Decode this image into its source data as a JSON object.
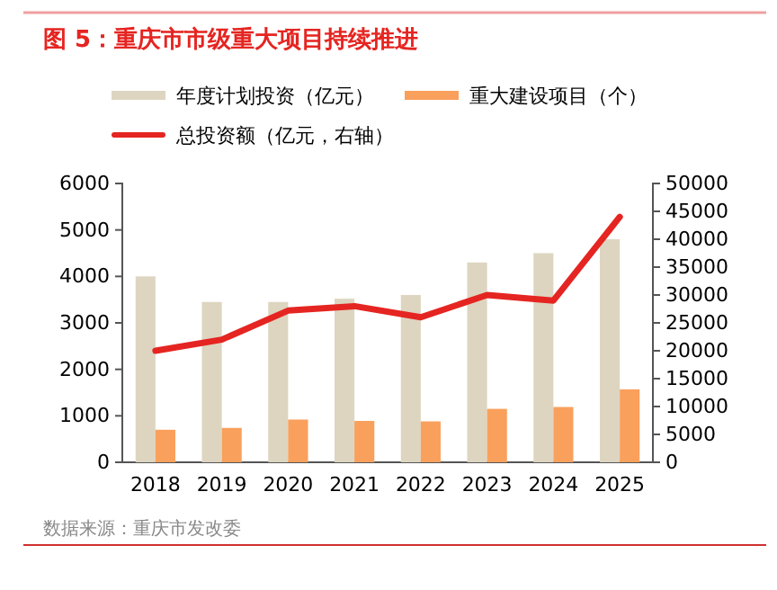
{
  "chart_data": {
    "type": "bar",
    "title": "图 5：重庆市市级重大项目持续推进",
    "categories": [
      "2018",
      "2019",
      "2020",
      "2021",
      "2022",
      "2023",
      "2024",
      "2025"
    ],
    "series": [
      {
        "name": "年度计划投资（亿元）",
        "color": "#ddd5c0",
        "values": [
          4000,
          3450,
          3450,
          3520,
          3600,
          4300,
          4500,
          4800
        ]
      },
      {
        "name": "重大建设项目（个）",
        "color": "#f9a05c",
        "values": [
          700,
          740,
          920,
          890,
          880,
          1150,
          1190,
          1570
        ]
      },
      {
        "name": "总投资额（亿元，右轴）",
        "type": "line",
        "axis": "y2",
        "color": "#e52521",
        "values": [
          20000,
          22000,
          27200,
          28000,
          26000,
          30000,
          29000,
          44000
        ]
      }
    ],
    "ylim": [
      0,
      6000
    ],
    "yticks": [
      0,
      1000,
      2000,
      3000,
      4000,
      5000,
      6000
    ],
    "y2lim": [
      0,
      50000
    ],
    "y2ticks": [
      0,
      5000,
      10000,
      15000,
      20000,
      25000,
      30000,
      35000,
      40000,
      45000,
      50000
    ],
    "legend": "top",
    "grid": false,
    "annotations": [
      "数据来源：重庆市发改委"
    ]
  }
}
